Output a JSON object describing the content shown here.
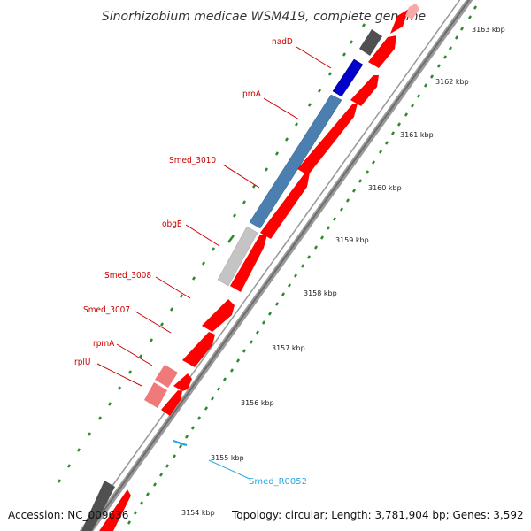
{
  "title": "Sinorhizobium medicae WSM419, complete genome",
  "footer": {
    "accession": "Accession: NC_009636",
    "summary": "Topology: circular; Length: 3,781,904 bp; Genes: 3,592"
  },
  "scale": {
    "unit": "kbp",
    "ticks": [
      "3154 kbp",
      "3155 kbp",
      "3156 kbp",
      "3157 kbp",
      "3158 kbp",
      "3159 kbp",
      "3160 kbp",
      "3161 kbp",
      "3162 kbp",
      "3163 kbp"
    ]
  },
  "gene_labels": [
    "nadD",
    "proA",
    "Smed_3010",
    "obgE",
    "Smed_3008",
    "Smed_3007",
    "rpmA",
    "rplU"
  ],
  "rna_labels": [
    "Smed_R0052"
  ],
  "colors": {
    "backbone": "#888888",
    "gene_forward": "#ff0000",
    "gene_pink": "#f07a7a",
    "nadD": "#0000cc",
    "proA": "#4a7fb0",
    "obgE": "#c4c4c4",
    "gray_dark": "#4d4d4d",
    "label": "#cc0000",
    "rna": "#29a9e0",
    "tick": "#2c8a2c"
  }
}
